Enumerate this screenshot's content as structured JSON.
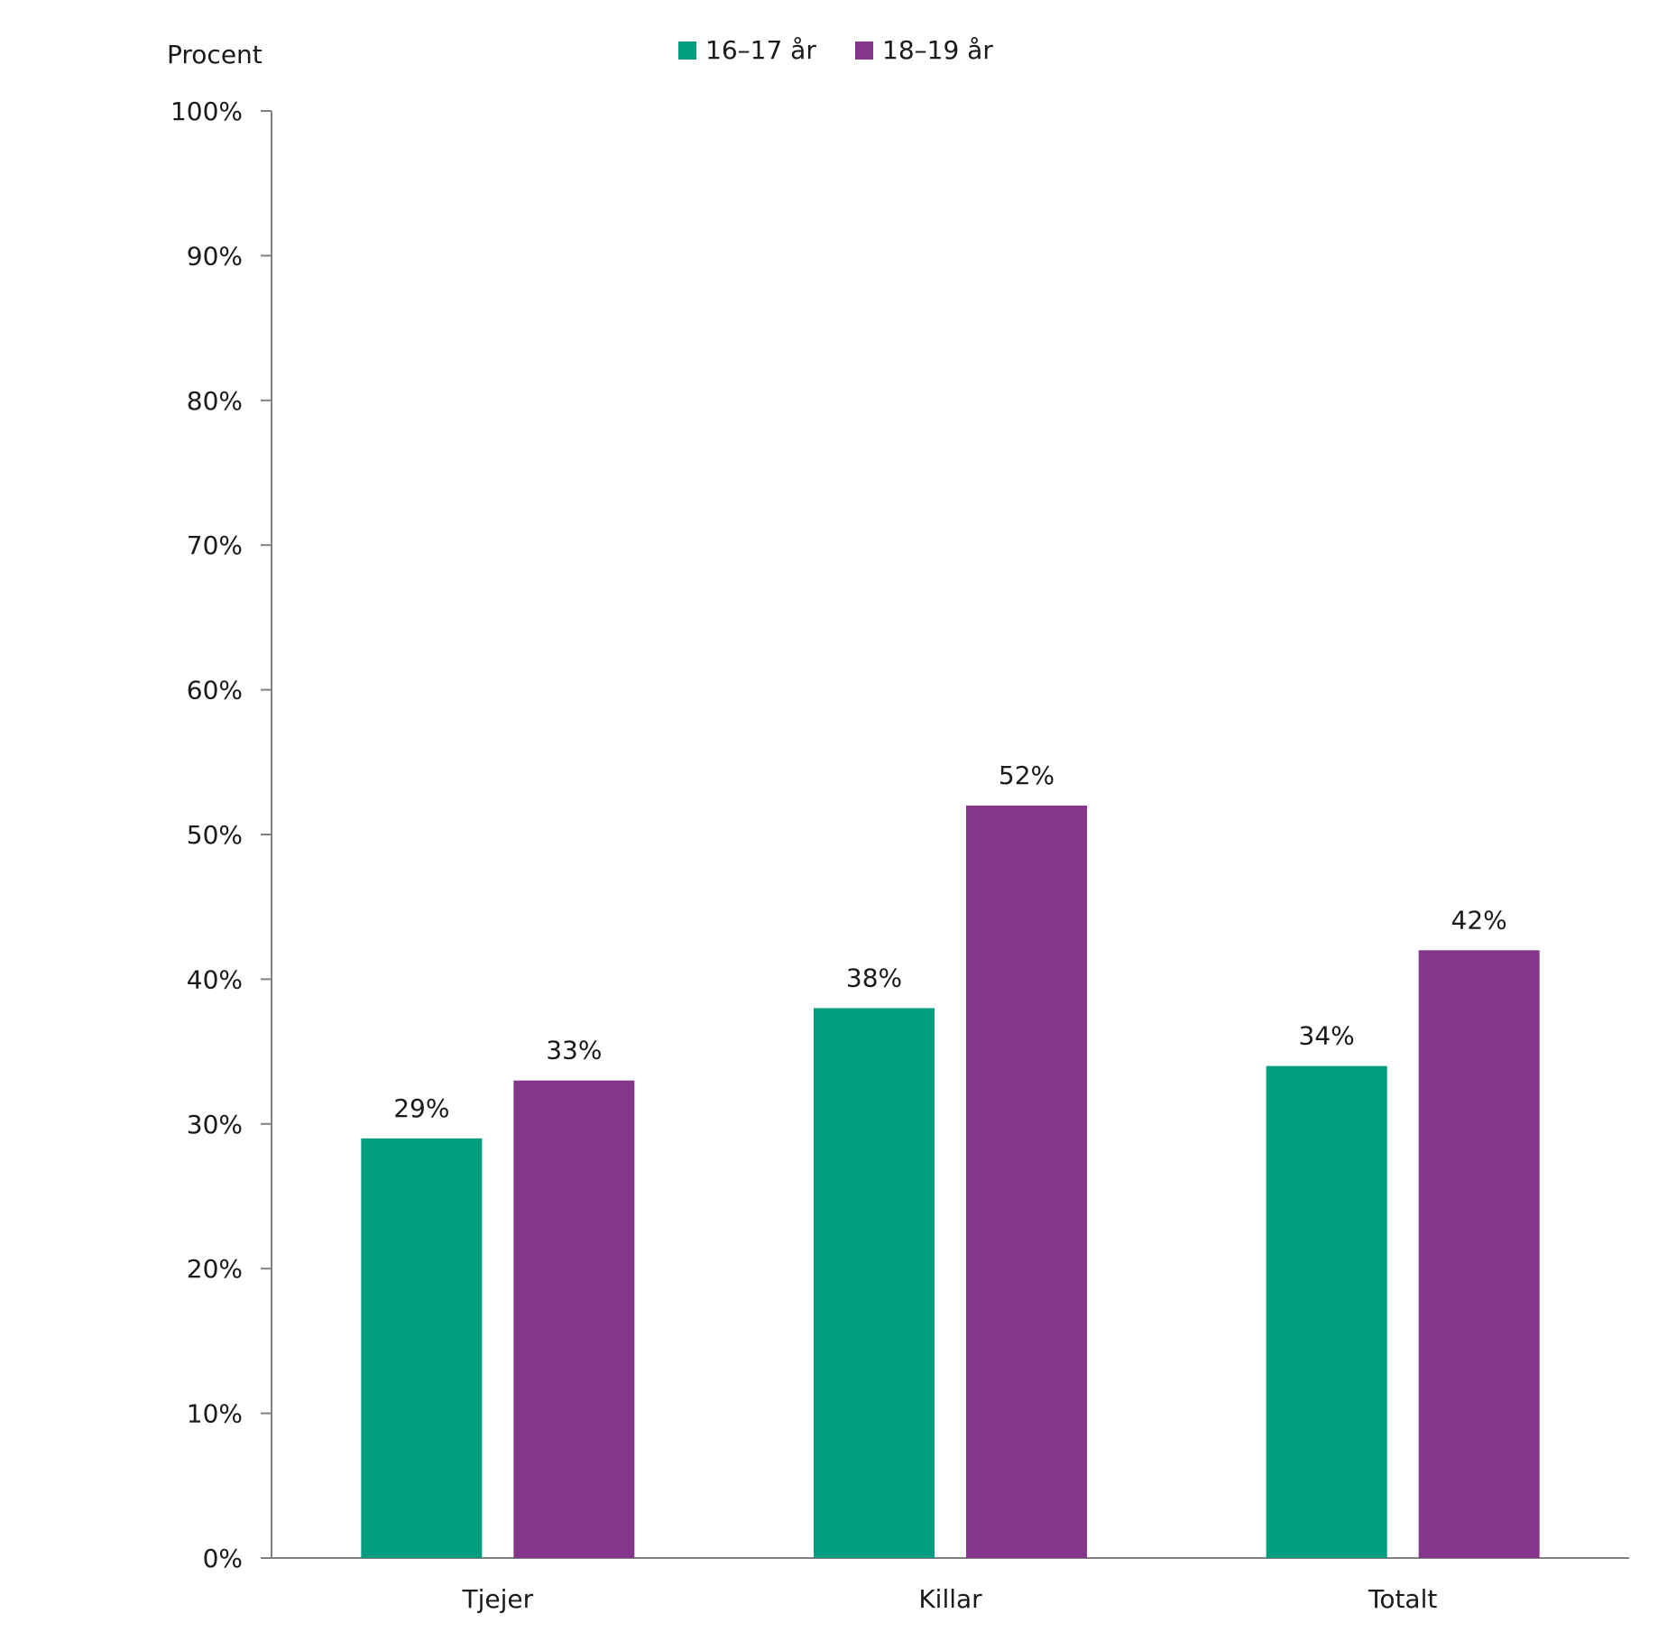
{
  "chart_data": {
    "type": "bar",
    "ylabel": "Procent",
    "categories": [
      "Tjejer",
      "Killar",
      "Totalt"
    ],
    "series": [
      {
        "name": "16–17 år",
        "color": "#009e7e",
        "values": [
          29,
          38,
          34
        ],
        "labels": [
          "29%",
          "38%",
          "34%"
        ]
      },
      {
        "name": "18–19 år",
        "color": "#84368a",
        "values": [
          33,
          52,
          42
        ],
        "labels": [
          "33%",
          "52%",
          "42%"
        ]
      }
    ],
    "ylim": [
      0,
      100
    ],
    "yticks": [
      0,
      10,
      20,
      30,
      40,
      50,
      60,
      70,
      80,
      90,
      100
    ],
    "ytick_labels": [
      "0%",
      "10%",
      "20%",
      "30%",
      "40%",
      "50%",
      "60%",
      "70%",
      "80%",
      "90%",
      "100%"
    ],
    "grid": false,
    "legend_position": "top-center"
  }
}
